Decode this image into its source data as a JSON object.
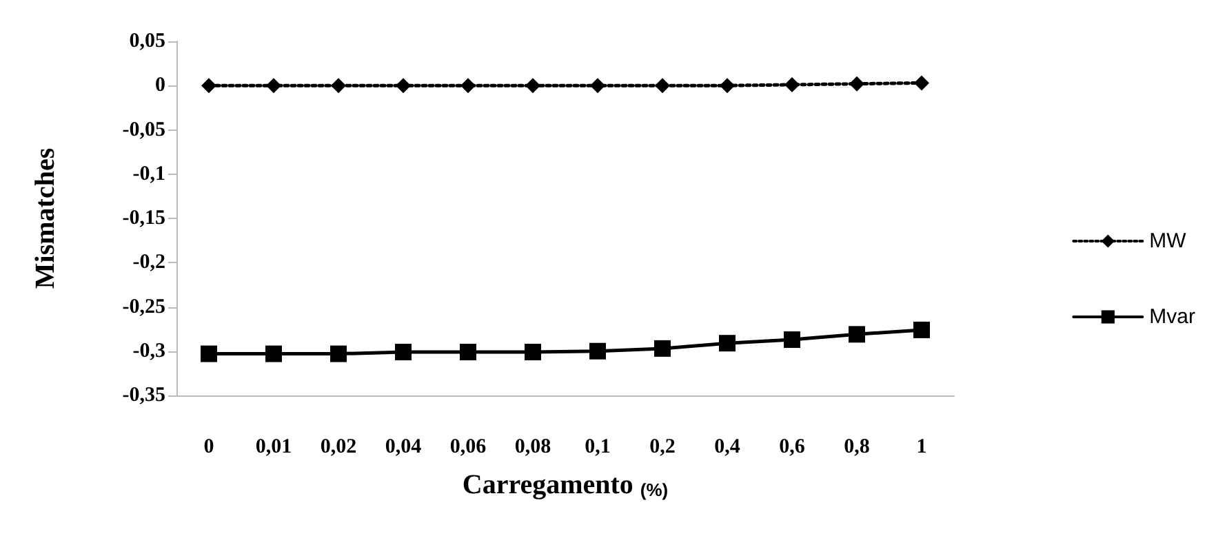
{
  "chart_data": {
    "type": "line",
    "xlabel": "Carregamento $_{(%)}$",
    "ylabel": "Mismatches",
    "categories": [
      "0",
      "0,01",
      "0,02",
      "0,04",
      "0,06",
      "0,08",
      "0,1",
      "0,2",
      "0,4",
      "0,6",
      "0,8",
      "1"
    ],
    "series": [
      {
        "name": "MW",
        "color": "#000000",
        "marker": "diamond",
        "line_style": "dotted",
        "values": [
          0,
          0,
          0,
          0,
          0,
          0,
          0,
          0,
          0,
          0.001,
          0.002,
          0.003
        ]
      },
      {
        "name": "Mvar",
        "color": "#000000",
        "marker": "square",
        "line_style": "solid",
        "values": [
          -0.303,
          -0.303,
          -0.303,
          -0.301,
          -0.301,
          -0.301,
          -0.3,
          -0.297,
          -0.291,
          -0.287,
          -0.281,
          -0.276
        ]
      }
    ],
    "ylim": [
      -0.35,
      0.05
    ],
    "yticks": [
      {
        "value": -0.35,
        "label": "-0,35"
      },
      {
        "value": -0.3,
        "label": "-0,3"
      },
      {
        "value": -0.25,
        "label": "-0,25"
      },
      {
        "value": -0.2,
        "label": "-0,2"
      },
      {
        "value": -0.15,
        "label": "-0,15"
      },
      {
        "value": -0.1,
        "label": "-0,1"
      },
      {
        "value": -0.05,
        "label": "-0,05"
      },
      0,
      {
        "value": 0.05,
        "label": "0,05"
      }
    ],
    "grid": false,
    "legend": "right"
  }
}
